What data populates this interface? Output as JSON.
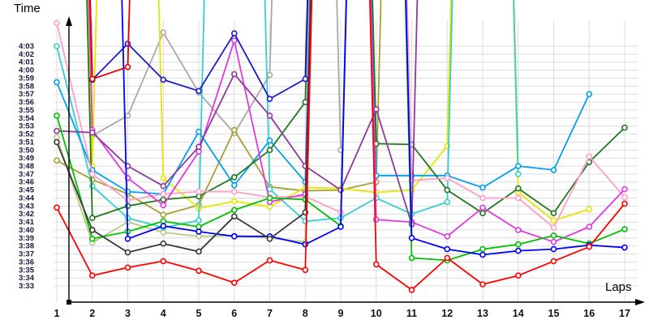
{
  "chart_data": {
    "type": "line",
    "title": "",
    "ylabel": "Time",
    "xlabel": "Laps",
    "grid": true,
    "legend": "none",
    "x": [
      1,
      2,
      3,
      4,
      5,
      6,
      7,
      8,
      9,
      10,
      11,
      12,
      13,
      14,
      15,
      16,
      17
    ],
    "x_tick_labels": [
      "1",
      "2",
      "3",
      "4",
      "5",
      "6",
      "7",
      "8",
      "9",
      "10",
      "11",
      "12",
      "13",
      "14",
      "15",
      "16",
      "17"
    ],
    "y_tick_labels_top_to_bottom": [
      "4:03",
      "4:02",
      "4:01",
      "4:00",
      "3:59",
      "3:58",
      "3:57",
      "3:56",
      "3:55",
      "3:54",
      "3:53",
      "3:52",
      "3:51",
      "3:50",
      "3:49",
      "3:48",
      "3:47",
      "3:46",
      "3:45",
      "3:44",
      "3:43",
      "3:42",
      "3:41",
      "3:40",
      "3:39",
      "3:38",
      "3:37",
      "3:36",
      "3:35",
      "3:34",
      "3:33"
    ],
    "y_axis_unit": "minutes:seconds",
    "y_min_label_seconds": 213,
    "y_max_label_seconds": 243,
    "off_chart_value_seconds": 400,
    "note_colors": {
      "grid": "#dcdcdc",
      "axis": "#000000",
      "marker_fill": "#ffffff"
    },
    "series": [
      {
        "name": "gray",
        "color": "#a8a8a8",
        "values": [
          400,
          231.8,
          234.3,
          244.7,
          237.2,
          232.1,
          239.4,
          400,
          230.0,
          null,
          null,
          null,
          null,
          null,
          null,
          null,
          null
        ]
      },
      {
        "name": "khaki",
        "color": "#a8a032",
        "values": [
          228.7,
          226.3,
          224.5,
          221.9,
          223.1,
          232.5,
          225.4,
          224.9,
          225.0,
          226.0,
          400,
          null,
          null,
          null,
          null,
          null,
          null
        ]
      },
      {
        "name": "pale-green",
        "color": "#b4cd82",
        "values": [
          231.6,
          218.4,
          221.0,
          219.7,
          219.2,
          219.3,
          219.0,
          218.5,
          400,
          null,
          null,
          null,
          null,
          null,
          null,
          null,
          null
        ]
      },
      {
        "name": "yellow",
        "color": "#e6e600",
        "values": [
          400,
          228.0,
          400,
          226.5,
          222.7,
          223.6,
          222.9,
          225.3,
          225.2,
          224.7,
          225.0,
          230.5,
          400,
          224.7,
          221.2,
          222.6,
          null
        ]
      },
      {
        "name": "cyan",
        "color": "#35cfcf",
        "values": [
          243.0,
          225.5,
          221.5,
          220.3,
          221.2,
          400,
          225.1,
          221.1,
          221.5,
          224.0,
          222.0,
          223.5,
          400,
          227.0,
          null,
          null,
          null
        ]
      },
      {
        "name": "sky-blue",
        "color": "#00a0f0",
        "values": [
          238.5,
          227.5,
          224.8,
          224.5,
          232.3,
          225.6,
          231.2,
          226.0,
          400,
          226.8,
          226.8,
          226.8,
          225.3,
          228.0,
          227.5,
          237.0,
          null
        ]
      },
      {
        "name": "dark-green",
        "color": "#1e781e",
        "values": [
          400,
          221.5,
          223.0,
          223.8,
          224.2,
          226.6,
          230.0,
          236.0,
          400,
          230.8,
          230.7,
          225.0,
          222.1,
          225.2,
          222.1,
          228.5,
          232.8
        ]
      },
      {
        "name": "pink",
        "color": "#ff9ec8",
        "values": [
          245.9,
          227.0,
          223.7,
          224.5,
          224.8,
          224.8,
          224.1,
          224.2,
          222.2,
          400,
          226.2,
          226.5,
          224.0,
          224.0,
          220.3,
          229.2,
          224.1
        ]
      },
      {
        "name": "magenta",
        "color": "#e038e0",
        "values": [
          400,
          232.5,
          226.5,
          223.1,
          229.8,
          243.7,
          223.5,
          224.5,
          400,
          221.3,
          221.0,
          219.2,
          222.8,
          220.0,
          218.5,
          220.4,
          225.1
        ]
      },
      {
        "name": "purple",
        "color": "#8c3a9c",
        "values": [
          232.4,
          232.2,
          228.0,
          225.5,
          230.4,
          239.5,
          234.3,
          228.0,
          225.0,
          235.1,
          220.7,
          400,
          null,
          null,
          null,
          null,
          null
        ]
      },
      {
        "name": "green",
        "color": "#00c000",
        "values": [
          234.3,
          218.9,
          219.8,
          221.1,
          220.4,
          222.5,
          224.0,
          223.8,
          220.5,
          400,
          216.5,
          216.2,
          217.6,
          218.2,
          219.3,
          218.3,
          220.1
        ]
      },
      {
        "name": "navy",
        "color": "#1a1acd",
        "values": [
          400,
          238.8,
          243.3,
          238.8,
          237.4,
          244.6,
          236.4,
          238.9,
          400,
          null,
          null,
          null,
          null,
          null,
          null,
          null,
          null
        ]
      },
      {
        "name": "blue",
        "color": "#0000ff",
        "values": [
          null,
          400,
          218.9,
          220.5,
          219.8,
          219.2,
          219.2,
          218.2,
          220.4,
          400,
          219.0,
          217.6,
          216.9,
          217.4,
          217.6,
          218.1,
          217.8
        ]
      },
      {
        "name": "black",
        "color": "#383838",
        "values": [
          231.0,
          220.0,
          217.2,
          218.3,
          217.3,
          221.7,
          218.9,
          222.2,
          400,
          null,
          null,
          null,
          null,
          null,
          null,
          null,
          null
        ]
      },
      {
        "name": "red-2",
        "color": "#e60000",
        "values": [
          400,
          238.9,
          240.4,
          400,
          null,
          null,
          null,
          null,
          null,
          null,
          null,
          null,
          null,
          null,
          null,
          null,
          null
        ]
      },
      {
        "name": "red",
        "color": "#ff0000",
        "values": [
          222.8,
          214.3,
          215.3,
          216.1,
          214.9,
          213.4,
          216.2,
          215.0,
          400,
          215.7,
          212.5,
          216.5,
          213.2,
          214.3,
          216.1,
          217.9,
          223.3
        ]
      }
    ]
  }
}
